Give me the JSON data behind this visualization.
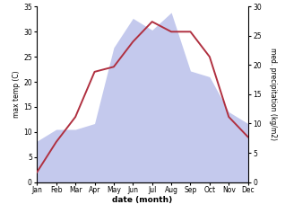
{
  "months": [
    "Jan",
    "Feb",
    "Mar",
    "Apr",
    "May",
    "Jun",
    "Jul",
    "Aug",
    "Sep",
    "Oct",
    "Nov",
    "Dec"
  ],
  "month_positions": [
    1,
    2,
    3,
    4,
    5,
    6,
    7,
    8,
    9,
    10,
    11,
    12
  ],
  "max_temp": [
    2,
    8,
    13,
    22,
    23,
    28,
    32,
    30,
    30,
    25,
    13,
    9
  ],
  "precipitation": [
    7,
    9,
    9,
    10,
    23,
    28,
    26,
    29,
    19,
    18,
    12,
    10
  ],
  "temp_ylim": [
    0,
    35
  ],
  "precip_ylim": [
    0,
    30
  ],
  "temp_yticks": [
    0,
    5,
    10,
    15,
    20,
    25,
    30,
    35
  ],
  "precip_yticks": [
    0,
    5,
    10,
    15,
    20,
    25,
    30
  ],
  "ylabel_left": "max temp (C)",
  "ylabel_right": "med. precipitation (kg/m2)",
  "xlabel": "date (month)",
  "line_color": "#b03040",
  "fill_color": "#b0b8e8",
  "fill_alpha": 0.75,
  "background_color": "#ffffff",
  "fig_width": 3.18,
  "fig_height": 2.47,
  "dpi": 100
}
